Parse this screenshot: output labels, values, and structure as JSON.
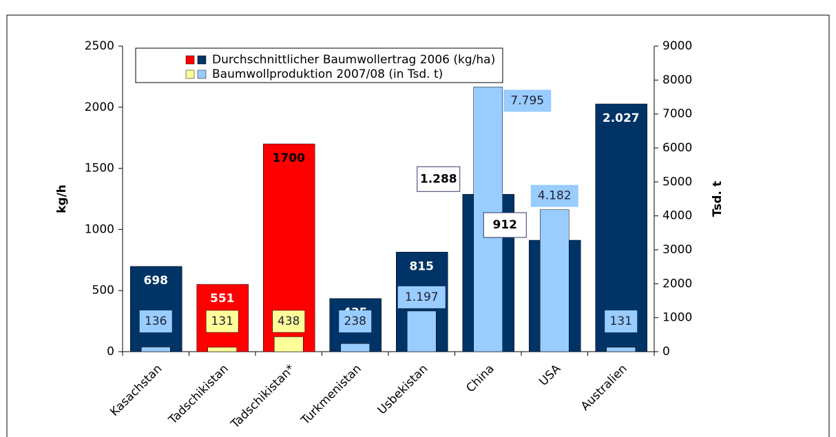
{
  "chart_data": {
    "type": "bar",
    "categories": [
      "Kasachstan",
      "Tadschikistan",
      "Tadschikistan*",
      "Turkmenistan",
      "Usbekistan",
      "China",
      "USA",
      "Australien"
    ],
    "series": [
      {
        "name": "Durchschnittlicher Baumwollertrag 2006 (kg/ha)",
        "axis": "y",
        "values": [
          698,
          551,
          1700,
          435,
          815,
          1288,
          912,
          2027
        ],
        "value_labels": [
          "698",
          "551",
          "1700",
          "435",
          "815",
          "1.288",
          "912",
          "2.027"
        ],
        "colors": [
          "#003366",
          "#ff0000",
          "#ff0000",
          "#003366",
          "#003366",
          "#003366",
          "#003366",
          "#003366"
        ],
        "legend_swatches": [
          "#ff0000",
          "#003366"
        ]
      },
      {
        "name": "Baumwollproduktion 2007/08 (in Tsd. t)",
        "axis": "y2",
        "values": [
          136,
          131,
          438,
          238,
          1197,
          7795,
          4182,
          131
        ],
        "value_labels": [
          "136",
          "131",
          "438",
          "238",
          "1.197",
          "7.795",
          "4.182",
          "131"
        ],
        "colors": [
          "#99ccff",
          "#ffff99",
          "#ffff99",
          "#99ccff",
          "#99ccff",
          "#99ccff",
          "#99ccff",
          "#99ccff"
        ],
        "legend_swatches": [
          "#ffff99",
          "#99ccff"
        ]
      }
    ],
    "ylabel": "kg/h",
    "y2label": "Tsd. t",
    "ylim": [
      0,
      2500
    ],
    "yticks": [
      0,
      500,
      1000,
      1500,
      2000,
      2500
    ],
    "y2lim": [
      0,
      9000
    ],
    "y2ticks": [
      0,
      1000,
      2000,
      3000,
      4000,
      5000,
      6000,
      7000,
      8000,
      9000
    ]
  }
}
